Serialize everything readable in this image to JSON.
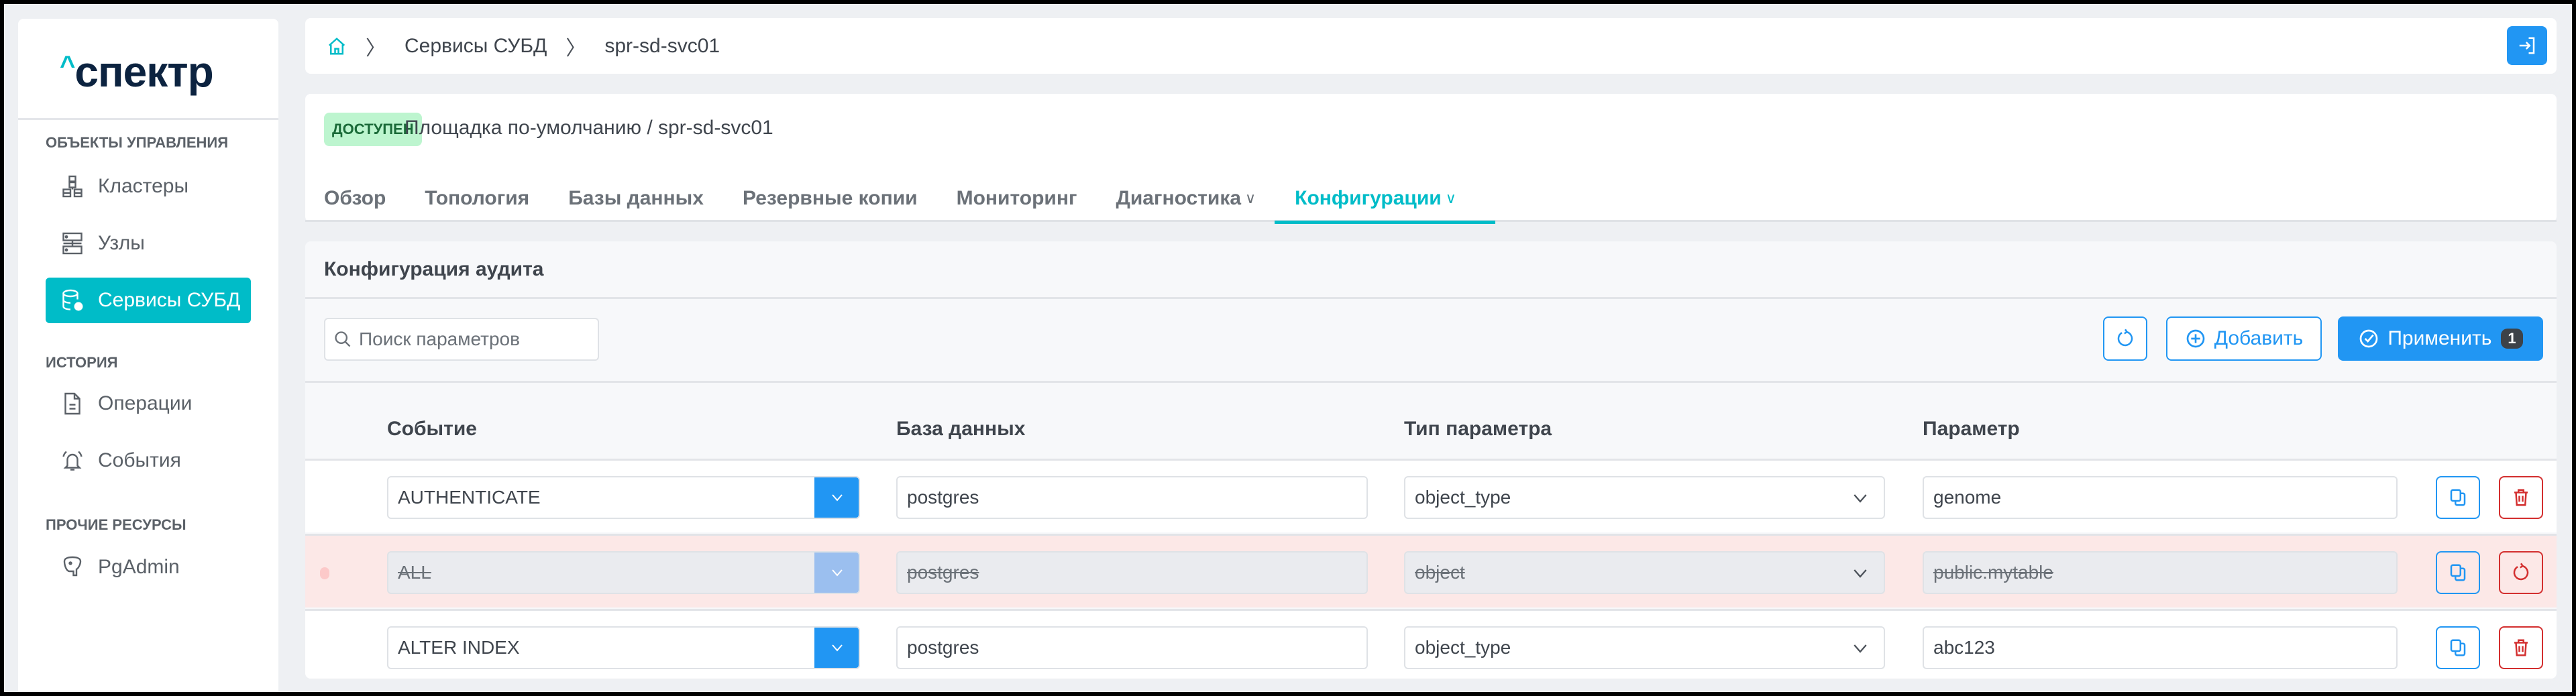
{
  "logo": {
    "text": "спектр",
    "caret": "^"
  },
  "sidebar": {
    "sections": [
      {
        "label": "ОБЪЕКТЫ УПРАВЛЕНИЯ"
      },
      {
        "label": "ИСТОРИЯ"
      },
      {
        "label": "ПРОЧИЕ РЕСУРСЫ"
      }
    ],
    "items": [
      {
        "label": "Кластеры",
        "icon": "cluster-icon"
      },
      {
        "label": "Узлы",
        "icon": "server-icon"
      },
      {
        "label": "Сервисы СУБД",
        "icon": "database-gear-icon",
        "active": true
      },
      {
        "label": "Операции",
        "icon": "document-icon"
      },
      {
        "label": "События",
        "icon": "bell-icon"
      },
      {
        "label": "PgAdmin",
        "icon": "postgres-elephant-icon"
      }
    ]
  },
  "breadcrumb": {
    "items": [
      "Сервисы СУБД",
      "spr-sd-svc01"
    ]
  },
  "header": {
    "status": "ДОСТУПЕН",
    "site": "Площадка по-умолчанию /  spr-sd-svc01"
  },
  "tabs": [
    {
      "label": "Обзор"
    },
    {
      "label": "Топология"
    },
    {
      "label": "Базы данных"
    },
    {
      "label": "Резервные копии"
    },
    {
      "label": "Мониторинг"
    },
    {
      "label": "Диагностика",
      "dropdown": true
    },
    {
      "label": "Конфигурации",
      "dropdown": true,
      "active": true
    }
  ],
  "audit": {
    "title": "Конфигурация аудита",
    "search_placeholder": "Поиск параметров",
    "add_label": "Добавить",
    "apply_label": "Применить",
    "apply_count": "1",
    "columns": [
      "Событие",
      "База данных",
      "Тип параметра",
      "Параметр"
    ],
    "rows": [
      {
        "event": "AUTHENTICATE",
        "database": "postgres",
        "param_type": "object_type",
        "param": "genome",
        "deleted": false
      },
      {
        "event": "ALL",
        "database": "postgres",
        "param_type": "object",
        "param": "public.mytable",
        "deleted": true
      },
      {
        "event": "ALTER INDEX",
        "database": "postgres",
        "param_type": "object_type",
        "param": "abc123",
        "deleted": false
      }
    ]
  },
  "colors": {
    "accent": "#00bcc8",
    "primary": "#2196f3",
    "danger": "#d32f2f",
    "deleted_row": "#fce8e7",
    "status_bg": "#bdf5cf"
  }
}
